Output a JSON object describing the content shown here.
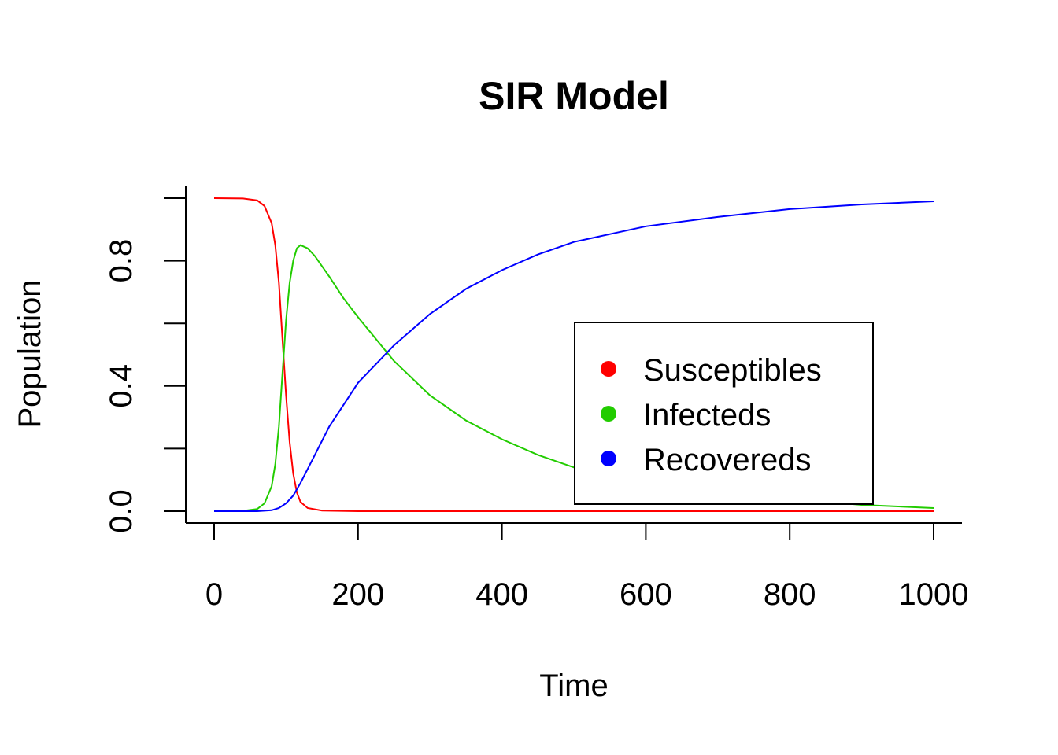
{
  "chart_data": {
    "type": "line",
    "title": "SIR Model",
    "xlabel": "Time",
    "ylabel": "Population",
    "xlim": [
      0,
      1000
    ],
    "ylim": [
      0,
      1
    ],
    "x_ticks": [
      0,
      200,
      400,
      600,
      800,
      1000
    ],
    "x_tick_labels": [
      "0",
      "200",
      "400",
      "600",
      "800",
      "1000"
    ],
    "y_ticks": [
      0,
      0.2,
      0.4,
      0.6,
      0.8,
      1.0
    ],
    "y_tick_labels": [
      "0.0",
      "",
      "0.4",
      "",
      "0.8",
      ""
    ],
    "grid": false,
    "legend_position": "center-right",
    "series": [
      {
        "name": "Susceptibles",
        "color": "#ff0000",
        "points": [
          [
            0,
            1.0
          ],
          [
            40,
            0.999
          ],
          [
            60,
            0.993
          ],
          [
            70,
            0.975
          ],
          [
            80,
            0.92
          ],
          [
            85,
            0.85
          ],
          [
            90,
            0.73
          ],
          [
            95,
            0.55
          ],
          [
            100,
            0.37
          ],
          [
            105,
            0.22
          ],
          [
            110,
            0.12
          ],
          [
            115,
            0.06
          ],
          [
            120,
            0.03
          ],
          [
            130,
            0.01
          ],
          [
            150,
            0.002
          ],
          [
            200,
            0.0
          ],
          [
            400,
            0.0
          ],
          [
            600,
            0.0
          ],
          [
            800,
            0.0
          ],
          [
            1000,
            0.0
          ]
        ]
      },
      {
        "name": "Infecteds",
        "color": "#22cc00",
        "points": [
          [
            0,
            0.0
          ],
          [
            40,
            0.001
          ],
          [
            60,
            0.007
          ],
          [
            70,
            0.025
          ],
          [
            80,
            0.08
          ],
          [
            85,
            0.15
          ],
          [
            90,
            0.27
          ],
          [
            95,
            0.44
          ],
          [
            100,
            0.61
          ],
          [
            105,
            0.73
          ],
          [
            110,
            0.8
          ],
          [
            115,
            0.84
          ],
          [
            120,
            0.85
          ],
          [
            130,
            0.84
          ],
          [
            140,
            0.815
          ],
          [
            160,
            0.75
          ],
          [
            180,
            0.68
          ],
          [
            200,
            0.62
          ],
          [
            250,
            0.48
          ],
          [
            300,
            0.37
          ],
          [
            350,
            0.29
          ],
          [
            400,
            0.23
          ],
          [
            450,
            0.18
          ],
          [
            500,
            0.14
          ],
          [
            600,
            0.1
          ],
          [
            700,
            0.07
          ],
          [
            800,
            0.04
          ],
          [
            900,
            0.02
          ],
          [
            1000,
            0.01
          ]
        ]
      },
      {
        "name": "Recovereds",
        "color": "#0000ff",
        "points": [
          [
            0,
            0.0
          ],
          [
            60,
            0.0
          ],
          [
            80,
            0.003
          ],
          [
            90,
            0.01
          ],
          [
            100,
            0.025
          ],
          [
            110,
            0.05
          ],
          [
            120,
            0.09
          ],
          [
            140,
            0.18
          ],
          [
            160,
            0.27
          ],
          [
            180,
            0.34
          ],
          [
            200,
            0.41
          ],
          [
            250,
            0.53
          ],
          [
            300,
            0.63
          ],
          [
            350,
            0.71
          ],
          [
            400,
            0.77
          ],
          [
            450,
            0.82
          ],
          [
            500,
            0.86
          ],
          [
            600,
            0.91
          ],
          [
            700,
            0.94
          ],
          [
            800,
            0.965
          ],
          [
            900,
            0.98
          ],
          [
            1000,
            0.99
          ]
        ]
      }
    ]
  }
}
